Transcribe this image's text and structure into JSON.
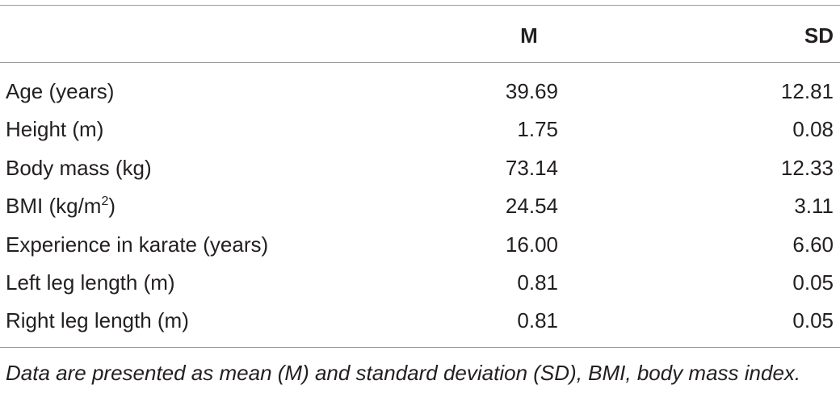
{
  "table": {
    "columns": [
      "M",
      "SD"
    ],
    "rows": [
      {
        "label": [
          "Age (years)"
        ],
        "M": "39.69",
        "SD": "12.81"
      },
      {
        "label": [
          "Height (m)"
        ],
        "M": "1.75",
        "SD": "0.08"
      },
      {
        "label": [
          "Body mass (kg)"
        ],
        "M": "73.14",
        "SD": "12.33"
      },
      {
        "label": [
          "BMI (kg/m",
          "2",
          ")"
        ],
        "M": "24.54",
        "SD": "3.11"
      },
      {
        "label": [
          "Experience in karate (years)"
        ],
        "M": "16.00",
        "SD": "6.60"
      },
      {
        "label": [
          "Left leg length (m)"
        ],
        "M": "0.81",
        "SD": "0.05"
      },
      {
        "label": [
          "Right leg length (m)"
        ],
        "M": "0.81",
        "SD": "0.05"
      }
    ],
    "footnote": "Data are presented as mean (M) and standard deviation (SD), BMI, body mass index."
  }
}
